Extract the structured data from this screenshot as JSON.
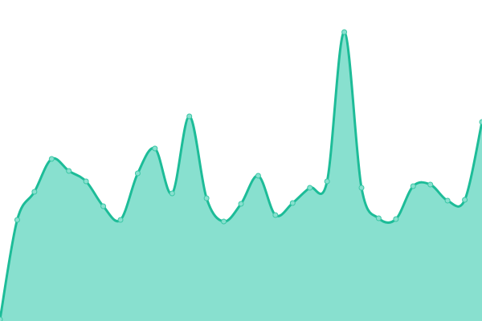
{
  "chart_data": {
    "type": "area",
    "title": "",
    "xlabel": "",
    "ylabel": "",
    "x": [
      0,
      1,
      2,
      3,
      4,
      5,
      6,
      7,
      8,
      9,
      10,
      11,
      12,
      13,
      14,
      15,
      16,
      17,
      18,
      19,
      20,
      21,
      22,
      23,
      24,
      25,
      26,
      27,
      28
    ],
    "values": [
      2,
      126,
      161,
      202,
      187,
      174,
      143,
      126,
      184,
      215,
      159,
      255,
      153,
      124,
      146,
      181,
      132,
      147,
      166,
      174,
      360,
      166,
      128,
      127,
      168,
      170,
      150,
      151,
      248
    ],
    "xlim": [
      0,
      28
    ],
    "ylim": [
      0,
      400
    ],
    "grid": false,
    "axes_visible": false,
    "curve": "smooth",
    "markers": true,
    "colors": {
      "line": "#1dbc98",
      "fill": "#88e0cf",
      "marker_fill": "#88e0cf",
      "marker_stroke": "#3cc7a6"
    }
  }
}
